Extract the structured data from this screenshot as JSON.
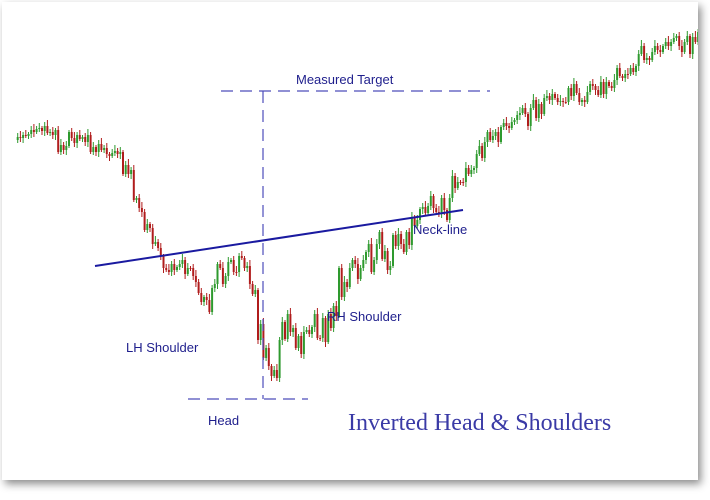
{
  "chart_data": {
    "type": "candlestick",
    "title": "Inverted Head & Shoulders",
    "y_scale": "price (unlabeled)",
    "x_scale": "sessions (unlabeled)",
    "grid": false,
    "colors": {
      "up": "#2e9a2e",
      "down": "#b01c1c",
      "neckline": "#1a1aa0",
      "annotation": "#4d4dbb",
      "label": "#1e1e8c"
    },
    "closes": [
      138,
      135,
      136,
      133,
      134,
      132,
      128,
      130,
      127,
      126,
      129,
      124,
      131,
      130,
      133,
      128,
      150,
      143,
      148,
      144,
      130,
      136,
      141,
      133,
      137,
      135,
      140,
      133,
      150,
      145,
      150,
      142,
      148,
      146,
      152,
      154,
      151,
      149,
      152,
      150,
      172,
      163,
      172,
      168,
      198,
      196,
      206,
      210,
      228,
      222,
      226,
      242,
      240,
      246,
      254,
      266,
      268,
      270,
      262,
      268,
      265,
      262,
      258,
      272,
      266,
      266,
      274,
      280,
      291,
      300,
      295,
      298,
      310,
      286,
      282,
      262,
      266,
      282,
      274,
      260,
      258,
      270,
      270,
      254,
      256,
      266,
      264,
      282,
      292,
      288,
      338,
      322,
      356,
      346,
      364,
      374,
      368,
      376,
      338,
      320,
      337,
      312,
      330,
      326,
      346,
      334,
      352,
      330,
      328,
      332,
      325,
      312,
      336,
      336,
      316,
      340,
      312,
      326,
      304,
      314,
      266,
      295,
      280,
      285,
      266,
      258,
      262,
      277,
      266,
      258,
      250,
      242,
      270,
      258,
      242,
      230,
      257,
      249,
      268,
      264,
      233,
      244,
      232,
      242,
      250,
      230,
      243,
      216,
      224,
      218,
      207,
      205,
      211,
      204,
      194,
      206,
      210,
      212,
      196,
      208,
      218,
      196,
      174,
      186,
      180,
      180,
      180,
      166,
      172,
      168,
      166,
      152,
      144,
      156,
      140,
      130,
      138,
      134,
      130,
      140,
      125,
      121,
      124,
      126,
      120,
      118,
      113,
      111,
      106,
      112,
      124,
      106,
      98,
      116,
      102,
      112,
      96,
      94,
      98,
      92,
      96,
      100,
      99,
      100,
      100,
      86,
      94,
      82,
      91,
      100,
      98,
      100,
      90,
      82,
      84,
      88,
      93,
      80,
      92,
      80,
      84,
      86,
      78,
      66,
      74,
      76,
      72,
      72,
      66,
      70,
      64,
      52,
      44,
      58,
      56,
      58,
      50,
      44,
      48,
      50,
      44,
      40,
      44,
      40,
      36,
      34,
      44,
      50,
      40,
      34,
      52,
      35,
      40,
      30,
      30,
      30,
      18,
      30
    ],
    "neckline": {
      "from": {
        "session": 0,
        "price": 264
      },
      "to": {
        "session": 146,
        "price": 210
      }
    },
    "target_level_price": 90,
    "head_low_price": 399,
    "projection_session": 70,
    "annotations": {
      "head": "Head",
      "left_shoulder": "LH Shoulder",
      "right_shoulder": "RH Shoulder",
      "neckline": "Neck-line",
      "measured_target": "Measured Target"
    }
  }
}
